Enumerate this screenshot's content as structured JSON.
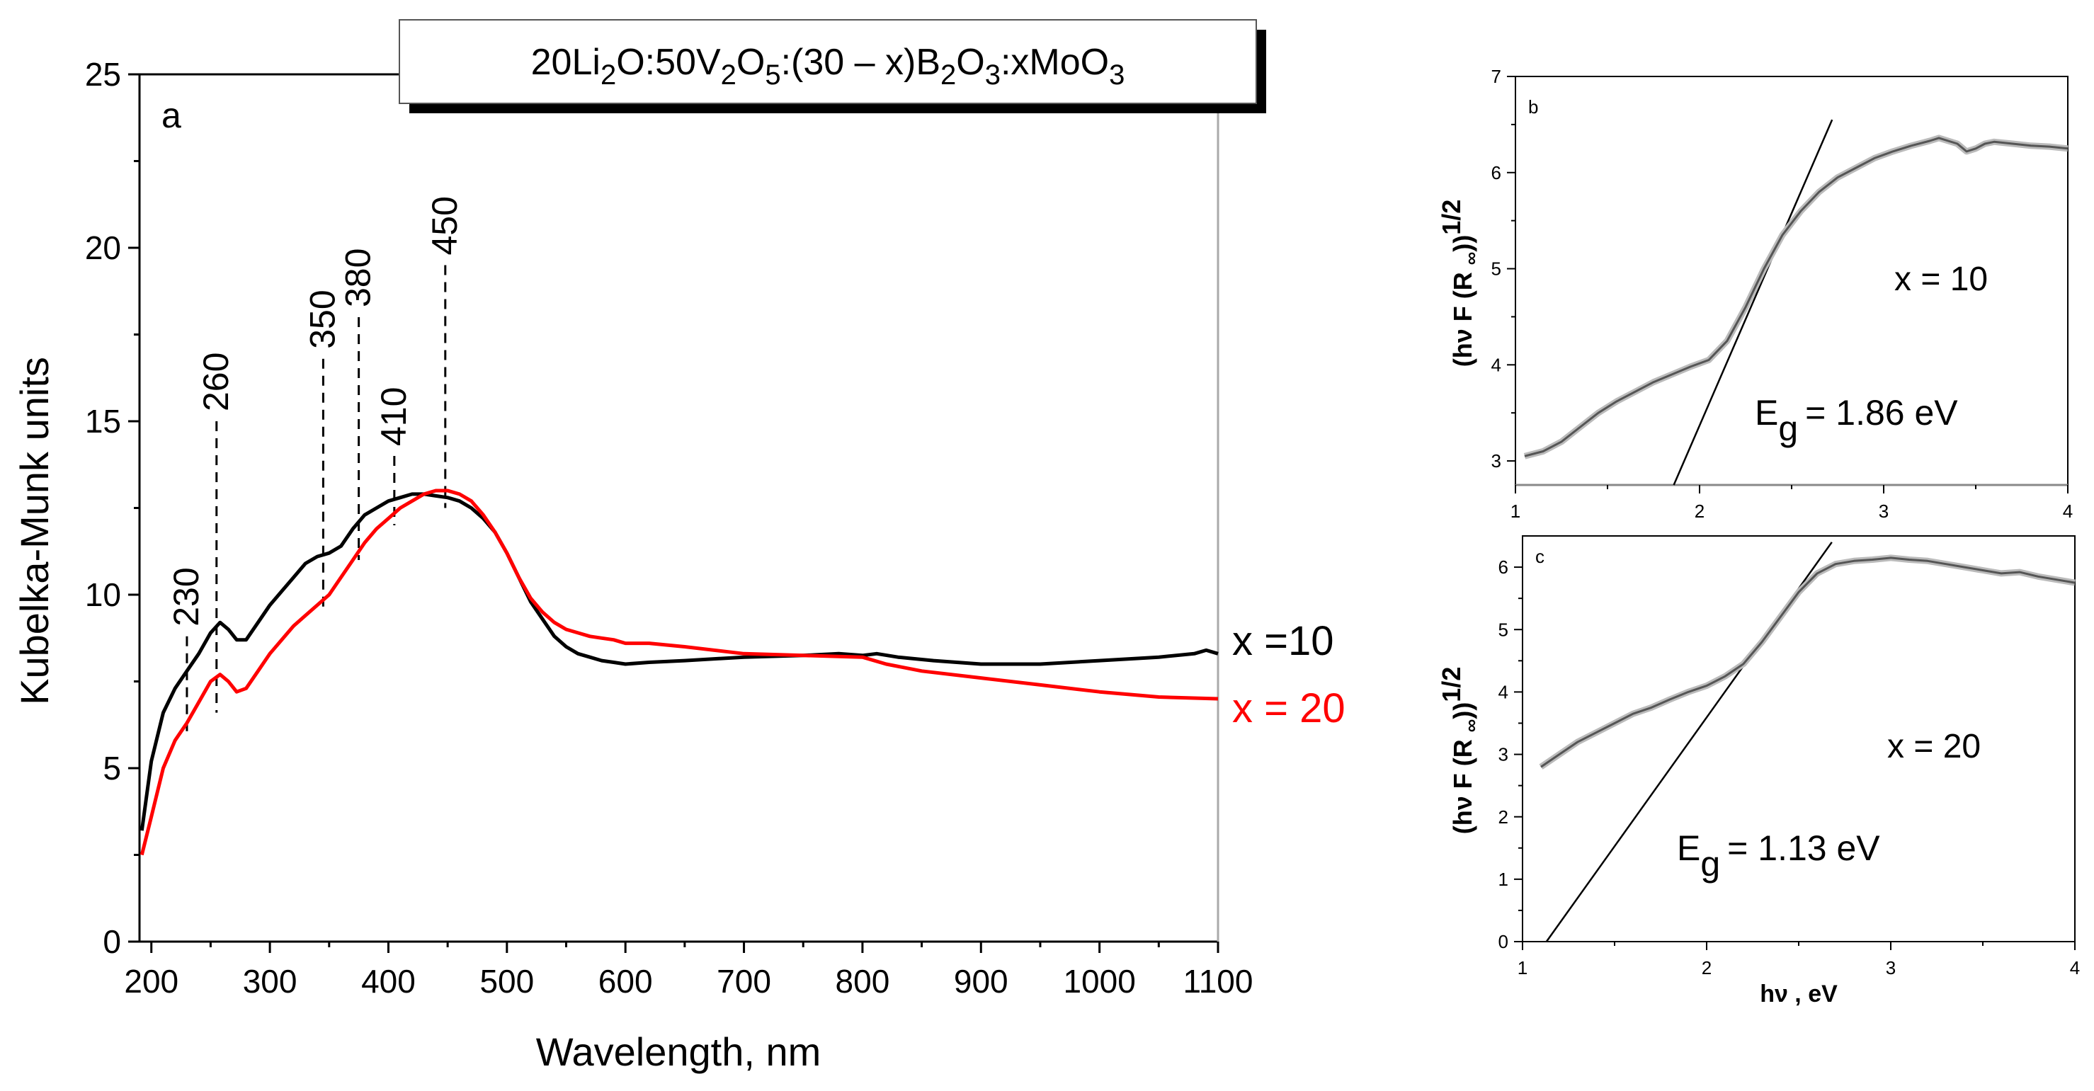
{
  "chart_data": [
    {
      "type": "line",
      "panel": "a",
      "title": "20Li2O:50V2O5:(30 – x)B2O3:xMoO3",
      "title_parts": [
        "20Li",
        "2",
        "O:50V",
        "2",
        "O",
        "5",
        ":(30 – x)B",
        "2",
        "O",
        "3",
        ":xMoO",
        "3"
      ],
      "xlabel": "Wavelength, nm",
      "ylabel": "Kubelka-Munk units",
      "xlim": [
        190,
        1100
      ],
      "ylim": [
        0,
        25
      ],
      "xticks": [
        200,
        300,
        400,
        500,
        600,
        700,
        800,
        900,
        1000,
        1100
      ],
      "yticks": [
        0,
        5,
        10,
        15,
        20,
        25
      ],
      "series": [
        {
          "name": "x =10",
          "color": "#000000",
          "x": [
            192,
            200,
            210,
            220,
            230,
            240,
            250,
            258,
            265,
            272,
            280,
            290,
            300,
            310,
            320,
            330,
            340,
            350,
            360,
            370,
            380,
            390,
            400,
            410,
            420,
            430,
            440,
            450,
            460,
            470,
            480,
            490,
            500,
            510,
            520,
            530,
            540,
            550,
            560,
            570,
            580,
            590,
            600,
            620,
            650,
            700,
            750,
            780,
            800,
            812,
            830,
            860,
            900,
            950,
            1000,
            1050,
            1080,
            1090,
            1100
          ],
          "y": [
            3.2,
            5.2,
            6.6,
            7.3,
            7.8,
            8.3,
            8.9,
            9.2,
            9.0,
            8.7,
            8.7,
            9.2,
            9.7,
            10.1,
            10.5,
            10.9,
            11.1,
            11.2,
            11.4,
            11.9,
            12.3,
            12.5,
            12.7,
            12.8,
            12.9,
            12.9,
            12.85,
            12.8,
            12.7,
            12.5,
            12.2,
            11.8,
            11.2,
            10.5,
            9.8,
            9.3,
            8.8,
            8.5,
            8.3,
            8.2,
            8.1,
            8.05,
            8.0,
            8.05,
            8.1,
            8.2,
            8.25,
            8.3,
            8.25,
            8.3,
            8.2,
            8.1,
            8.0,
            8.0,
            8.1,
            8.2,
            8.3,
            8.4,
            8.3
          ]
        },
        {
          "name": "x = 20",
          "color": "#ff0000",
          "x": [
            192,
            200,
            210,
            220,
            230,
            240,
            250,
            258,
            265,
            272,
            280,
            290,
            300,
            310,
            320,
            330,
            340,
            350,
            360,
            370,
            380,
            390,
            400,
            410,
            420,
            430,
            440,
            450,
            460,
            470,
            480,
            490,
            500,
            510,
            520,
            530,
            540,
            550,
            560,
            570,
            580,
            590,
            600,
            620,
            650,
            700,
            750,
            800,
            820,
            850,
            900,
            950,
            1000,
            1050,
            1100
          ],
          "y": [
            2.5,
            3.6,
            5.0,
            5.8,
            6.3,
            6.9,
            7.5,
            7.7,
            7.5,
            7.2,
            7.3,
            7.8,
            8.3,
            8.7,
            9.1,
            9.4,
            9.7,
            10.0,
            10.5,
            11.0,
            11.5,
            11.9,
            12.2,
            12.5,
            12.7,
            12.9,
            13.0,
            13.0,
            12.9,
            12.7,
            12.3,
            11.8,
            11.2,
            10.5,
            9.9,
            9.5,
            9.2,
            9.0,
            8.9,
            8.8,
            8.75,
            8.7,
            8.6,
            8.6,
            8.5,
            8.3,
            8.25,
            8.2,
            8.0,
            7.8,
            7.6,
            7.4,
            7.2,
            7.05,
            7.0
          ]
        }
      ],
      "annotations": {
        "peak_labels": [
          "230",
          "260",
          "350",
          "380",
          "410",
          "450"
        ],
        "peak_wavelengths": [
          230,
          255,
          345,
          375,
          405,
          448
        ],
        "peak_line_top": [
          8.8,
          15.0,
          16.8,
          18.0,
          14.0,
          19.5
        ],
        "peak_line_bottom": [
          6.0,
          6.6,
          9.5,
          11.0,
          12.0,
          12.5
        ],
        "panel_letter": "a"
      },
      "legend": "right"
    },
    {
      "type": "line",
      "panel": "b",
      "ylabel_parts": [
        "(hν F (R ",
        "∞",
        "))",
        "1/2"
      ],
      "xlim": [
        1,
        4
      ],
      "ylim": [
        2.75,
        7
      ],
      "xticks": [
        1,
        2,
        3,
        4
      ],
      "yticks": [
        3,
        4,
        5,
        6,
        7
      ],
      "series": [
        {
          "name": "x = 10",
          "color": "#555555",
          "x": [
            1.05,
            1.15,
            1.25,
            1.35,
            1.45,
            1.55,
            1.65,
            1.75,
            1.85,
            1.95,
            2.05,
            2.15,
            2.25,
            2.35,
            2.45,
            2.55,
            2.65,
            2.75,
            2.85,
            2.95,
            3.05,
            3.15,
            3.25,
            3.3,
            3.4,
            3.45,
            3.5,
            3.55,
            3.6,
            3.7,
            3.8,
            3.9,
            4.0
          ],
          "y": [
            3.05,
            3.1,
            3.2,
            3.35,
            3.5,
            3.62,
            3.72,
            3.82,
            3.9,
            3.98,
            4.05,
            4.25,
            4.6,
            5.0,
            5.35,
            5.6,
            5.8,
            5.95,
            6.05,
            6.15,
            6.22,
            6.28,
            6.33,
            6.36,
            6.3,
            6.22,
            6.25,
            6.3,
            6.32,
            6.3,
            6.28,
            6.27,
            6.25
          ]
        }
      ],
      "fit_line": {
        "x": [
          1.86,
          2.72
        ],
        "y": [
          2.75,
          6.55
        ]
      },
      "annotations": {
        "label": "x = 10",
        "eg_symbol": "E",
        "eg_sub": "g",
        "eg_text": "= 1.86 eV",
        "panel_letter": "b"
      }
    },
    {
      "type": "line",
      "panel": "c",
      "xlabel": "hν , eV",
      "ylabel_parts": [
        "(hν F (R ",
        "∞",
        "))",
        "1/2"
      ],
      "xlim": [
        1,
        4
      ],
      "ylim": [
        0,
        6.5
      ],
      "xticks": [
        1,
        2,
        3,
        4
      ],
      "yticks": [
        0,
        1,
        2,
        3,
        4,
        5,
        6
      ],
      "series": [
        {
          "name": "x = 20",
          "color": "#555555",
          "x": [
            1.1,
            1.2,
            1.3,
            1.4,
            1.5,
            1.6,
            1.7,
            1.8,
            1.9,
            2.0,
            2.1,
            2.2,
            2.3,
            2.4,
            2.5,
            2.6,
            2.7,
            2.8,
            2.9,
            3.0,
            3.1,
            3.2,
            3.3,
            3.4,
            3.5,
            3.6,
            3.7,
            3.8,
            3.9,
            4.0
          ],
          "y": [
            2.8,
            3.0,
            3.2,
            3.35,
            3.5,
            3.65,
            3.75,
            3.88,
            4.0,
            4.1,
            4.25,
            4.45,
            4.8,
            5.2,
            5.6,
            5.9,
            6.05,
            6.1,
            6.12,
            6.15,
            6.12,
            6.1,
            6.05,
            6.0,
            5.95,
            5.9,
            5.92,
            5.85,
            5.8,
            5.75
          ]
        }
      ],
      "fit_line": {
        "x": [
          1.13,
          2.68
        ],
        "y": [
          0,
          6.4
        ]
      },
      "annotations": {
        "label": "x = 20",
        "eg_symbol": "E",
        "eg_sub": "g",
        "eg_text": "= 1.13 eV",
        "panel_letter": "c"
      }
    }
  ]
}
